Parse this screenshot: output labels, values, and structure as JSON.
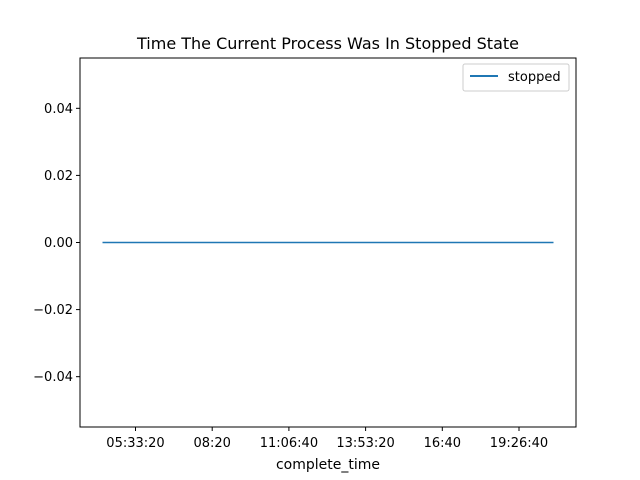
{
  "chart_data": {
    "type": "line",
    "title": "Time The Current Process Was In Stopped State",
    "xlabel": "complete_time",
    "ylabel": "",
    "x_ticks": [
      "05:33:20",
      "08:20",
      "11:06:40",
      "13:53:20",
      "16:40",
      "19:26:40"
    ],
    "y_ticks": [
      0.04,
      0.02,
      0.0,
      -0.02,
      -0.04
    ],
    "ylim": [
      -0.055,
      0.055
    ],
    "grid": false,
    "legend_position": "upper right",
    "series": [
      {
        "name": "stopped",
        "color": "#1f77b4",
        "x": [
          "~04:17",
          "~21:57"
        ],
        "values": [
          0,
          0
        ]
      }
    ]
  }
}
